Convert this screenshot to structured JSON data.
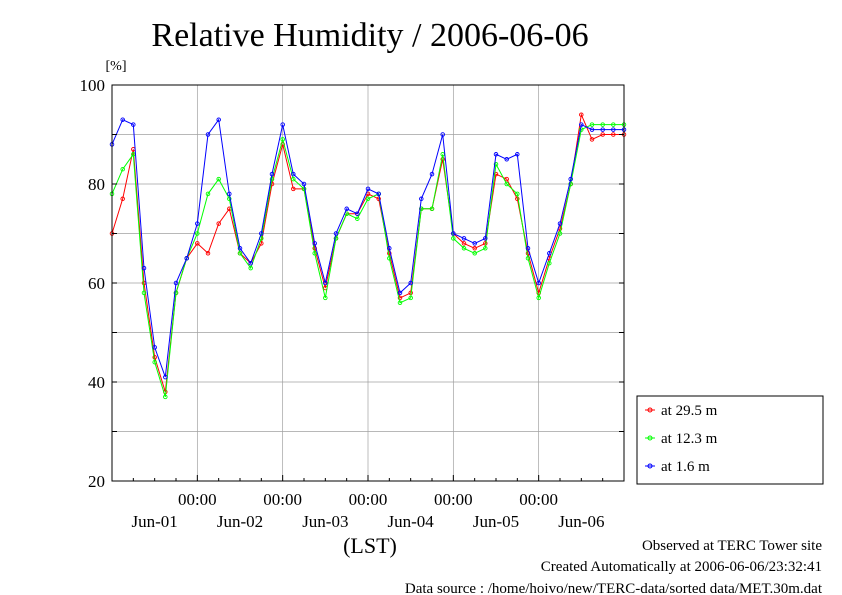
{
  "chart_data": {
    "type": "line",
    "title": "Relative Humidity / 2006-06-06",
    "ylabel": "[%]",
    "xlabel": "(LST)",
    "ylim": [
      20,
      100
    ],
    "yticks": [
      20,
      40,
      60,
      80,
      100
    ],
    "xlim": [
      0,
      6
    ],
    "time_ticks": [
      "00:00",
      "00:00",
      "00:00",
      "00:00",
      "00:00"
    ],
    "time_tick_x": [
      1,
      2,
      3,
      4,
      5
    ],
    "day_labels": [
      "Jun-01",
      "Jun-02",
      "Jun-03",
      "Jun-04",
      "Jun-05",
      "Jun-06"
    ],
    "day_label_x": [
      0.5,
      1.5,
      2.5,
      3.5,
      4.5,
      5.5
    ],
    "grid": true,
    "legend_position": "right",
    "x_hours": [
      0,
      3,
      6,
      9,
      12,
      15,
      18,
      21,
      24,
      27,
      30,
      33,
      36,
      39,
      42,
      45,
      48,
      51,
      54,
      57,
      60,
      63,
      66,
      69,
      72,
      75,
      78,
      81,
      84,
      87,
      90,
      93,
      96,
      99,
      102,
      105,
      108,
      111,
      114,
      117,
      120,
      123,
      126,
      129,
      132,
      135,
      138,
      141,
      144
    ],
    "series": [
      {
        "name": "at 29.5 m",
        "color": "#ff0000",
        "values": [
          70,
          77,
          87,
          60,
          45,
          38,
          58,
          65,
          68,
          66,
          72,
          75,
          66,
          64,
          68,
          80,
          88,
          79,
          79,
          67,
          59,
          69,
          74,
          74,
          78,
          77,
          66,
          57,
          58,
          75,
          75,
          85,
          70,
          68,
          67,
          68,
          82,
          81,
          77,
          66,
          58,
          65,
          71,
          80,
          94,
          89,
          90,
          90,
          90
        ]
      },
      {
        "name": "at 12.3 m",
        "color": "#00ff00",
        "values": [
          78,
          83,
          86,
          58,
          44,
          37,
          58,
          65,
          70,
          78,
          81,
          77,
          66,
          63,
          69,
          81,
          89,
          81,
          79,
          66,
          57,
          69,
          74,
          73,
          77,
          78,
          65,
          56,
          57,
          75,
          75,
          86,
          69,
          67,
          66,
          67,
          84,
          80,
          78,
          65,
          57,
          64,
          70,
          80,
          91,
          92,
          92,
          92,
          92
        ]
      },
      {
        "name": "at 1.6 m",
        "color": "#0000ff",
        "values": [
          88,
          93,
          92,
          63,
          47,
          41,
          60,
          65,
          72,
          90,
          93,
          78,
          67,
          64,
          70,
          82,
          92,
          82,
          80,
          68,
          60,
          70,
          75,
          74,
          79,
          78,
          67,
          58,
          60,
          77,
          82,
          90,
          70,
          69,
          68,
          69,
          86,
          85,
          86,
          67,
          60,
          66,
          72,
          81,
          92,
          91,
          91,
          91,
          91
        ]
      }
    ]
  },
  "footer": {
    "line1": "Observed at TERC Tower site",
    "line2": "Created Automatically at 2006-06-06/23:32:41",
    "line3": "Data source : /home/hoivo/new/TERC-data/sorted  data/MET.30m.dat"
  }
}
